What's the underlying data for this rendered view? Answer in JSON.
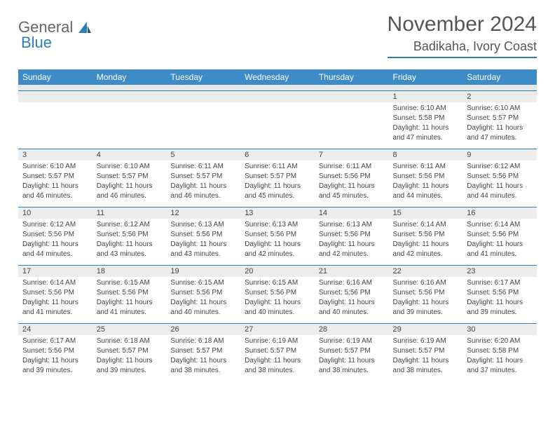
{
  "logo": {
    "word1": "General",
    "word2": "Blue"
  },
  "title": "November 2024",
  "location": "Badikaha, Ivory Coast",
  "colors": {
    "accent": "#3d8bc7",
    "border": "#2c7fb8",
    "day_num_bg": "#ececec",
    "text": "#444444",
    "title_text": "#555555"
  },
  "day_headers": [
    "Sunday",
    "Monday",
    "Tuesday",
    "Wednesday",
    "Thursday",
    "Friday",
    "Saturday"
  ],
  "weeks": [
    [
      null,
      null,
      null,
      null,
      null,
      {
        "n": "1",
        "sunrise": "Sunrise: 6:10 AM",
        "sunset": "Sunset: 5:58 PM",
        "daylight": "Daylight: 11 hours and 47 minutes."
      },
      {
        "n": "2",
        "sunrise": "Sunrise: 6:10 AM",
        "sunset": "Sunset: 5:57 PM",
        "daylight": "Daylight: 11 hours and 47 minutes."
      }
    ],
    [
      {
        "n": "3",
        "sunrise": "Sunrise: 6:10 AM",
        "sunset": "Sunset: 5:57 PM",
        "daylight": "Daylight: 11 hours and 46 minutes."
      },
      {
        "n": "4",
        "sunrise": "Sunrise: 6:10 AM",
        "sunset": "Sunset: 5:57 PM",
        "daylight": "Daylight: 11 hours and 46 minutes."
      },
      {
        "n": "5",
        "sunrise": "Sunrise: 6:11 AM",
        "sunset": "Sunset: 5:57 PM",
        "daylight": "Daylight: 11 hours and 46 minutes."
      },
      {
        "n": "6",
        "sunrise": "Sunrise: 6:11 AM",
        "sunset": "Sunset: 5:57 PM",
        "daylight": "Daylight: 11 hours and 45 minutes."
      },
      {
        "n": "7",
        "sunrise": "Sunrise: 6:11 AM",
        "sunset": "Sunset: 5:56 PM",
        "daylight": "Daylight: 11 hours and 45 minutes."
      },
      {
        "n": "8",
        "sunrise": "Sunrise: 6:11 AM",
        "sunset": "Sunset: 5:56 PM",
        "daylight": "Daylight: 11 hours and 44 minutes."
      },
      {
        "n": "9",
        "sunrise": "Sunrise: 6:12 AM",
        "sunset": "Sunset: 5:56 PM",
        "daylight": "Daylight: 11 hours and 44 minutes."
      }
    ],
    [
      {
        "n": "10",
        "sunrise": "Sunrise: 6:12 AM",
        "sunset": "Sunset: 5:56 PM",
        "daylight": "Daylight: 11 hours and 44 minutes."
      },
      {
        "n": "11",
        "sunrise": "Sunrise: 6:12 AM",
        "sunset": "Sunset: 5:56 PM",
        "daylight": "Daylight: 11 hours and 43 minutes."
      },
      {
        "n": "12",
        "sunrise": "Sunrise: 6:13 AM",
        "sunset": "Sunset: 5:56 PM",
        "daylight": "Daylight: 11 hours and 43 minutes."
      },
      {
        "n": "13",
        "sunrise": "Sunrise: 6:13 AM",
        "sunset": "Sunset: 5:56 PM",
        "daylight": "Daylight: 11 hours and 42 minutes."
      },
      {
        "n": "14",
        "sunrise": "Sunrise: 6:13 AM",
        "sunset": "Sunset: 5:56 PM",
        "daylight": "Daylight: 11 hours and 42 minutes."
      },
      {
        "n": "15",
        "sunrise": "Sunrise: 6:14 AM",
        "sunset": "Sunset: 5:56 PM",
        "daylight": "Daylight: 11 hours and 42 minutes."
      },
      {
        "n": "16",
        "sunrise": "Sunrise: 6:14 AM",
        "sunset": "Sunset: 5:56 PM",
        "daylight": "Daylight: 11 hours and 41 minutes."
      }
    ],
    [
      {
        "n": "17",
        "sunrise": "Sunrise: 6:14 AM",
        "sunset": "Sunset: 5:56 PM",
        "daylight": "Daylight: 11 hours and 41 minutes."
      },
      {
        "n": "18",
        "sunrise": "Sunrise: 6:15 AM",
        "sunset": "Sunset: 5:56 PM",
        "daylight": "Daylight: 11 hours and 41 minutes."
      },
      {
        "n": "19",
        "sunrise": "Sunrise: 6:15 AM",
        "sunset": "Sunset: 5:56 PM",
        "daylight": "Daylight: 11 hours and 40 minutes."
      },
      {
        "n": "20",
        "sunrise": "Sunrise: 6:15 AM",
        "sunset": "Sunset: 5:56 PM",
        "daylight": "Daylight: 11 hours and 40 minutes."
      },
      {
        "n": "21",
        "sunrise": "Sunrise: 6:16 AM",
        "sunset": "Sunset: 5:56 PM",
        "daylight": "Daylight: 11 hours and 40 minutes."
      },
      {
        "n": "22",
        "sunrise": "Sunrise: 6:16 AM",
        "sunset": "Sunset: 5:56 PM",
        "daylight": "Daylight: 11 hours and 39 minutes."
      },
      {
        "n": "23",
        "sunrise": "Sunrise: 6:17 AM",
        "sunset": "Sunset: 5:56 PM",
        "daylight": "Daylight: 11 hours and 39 minutes."
      }
    ],
    [
      {
        "n": "24",
        "sunrise": "Sunrise: 6:17 AM",
        "sunset": "Sunset: 5:56 PM",
        "daylight": "Daylight: 11 hours and 39 minutes."
      },
      {
        "n": "25",
        "sunrise": "Sunrise: 6:18 AM",
        "sunset": "Sunset: 5:57 PM",
        "daylight": "Daylight: 11 hours and 39 minutes."
      },
      {
        "n": "26",
        "sunrise": "Sunrise: 6:18 AM",
        "sunset": "Sunset: 5:57 PM",
        "daylight": "Daylight: 11 hours and 38 minutes."
      },
      {
        "n": "27",
        "sunrise": "Sunrise: 6:19 AM",
        "sunset": "Sunset: 5:57 PM",
        "daylight": "Daylight: 11 hours and 38 minutes."
      },
      {
        "n": "28",
        "sunrise": "Sunrise: 6:19 AM",
        "sunset": "Sunset: 5:57 PM",
        "daylight": "Daylight: 11 hours and 38 minutes."
      },
      {
        "n": "29",
        "sunrise": "Sunrise: 6:19 AM",
        "sunset": "Sunset: 5:57 PM",
        "daylight": "Daylight: 11 hours and 38 minutes."
      },
      {
        "n": "30",
        "sunrise": "Sunrise: 6:20 AM",
        "sunset": "Sunset: 5:58 PM",
        "daylight": "Daylight: 11 hours and 37 minutes."
      }
    ]
  ]
}
